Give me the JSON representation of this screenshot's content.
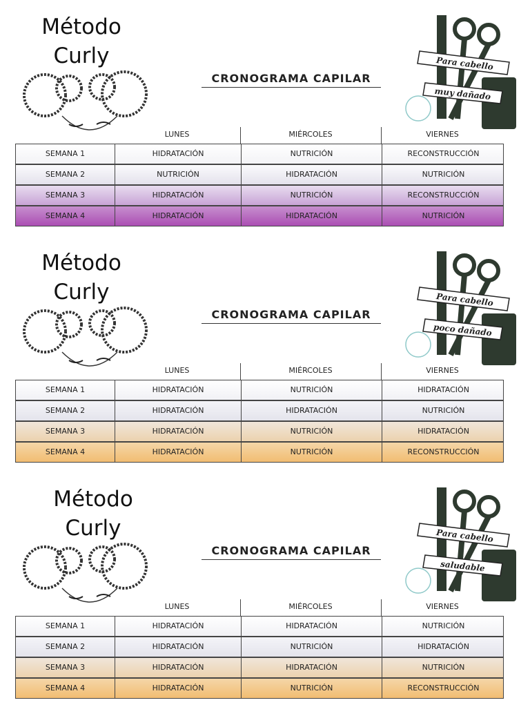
{
  "sections": [
    {
      "title": [
        "Método",
        "Curly"
      ],
      "heading": "CRONOGRAMA   CAPILAR",
      "badge": [
        "Para cabello",
        "muy dañado"
      ],
      "columns": [
        "LUNES",
        "MIÉRCOLES",
        "VIERNES"
      ],
      "rows": [
        {
          "label": "SEMANA 1",
          "cells": [
            "HIDRATACIÓN",
            "NUTRICIÓN",
            "RECONSTRUCCIÓN"
          ]
        },
        {
          "label": "SEMANA 2",
          "cells": [
            "NUTRICIÓN",
            "HIDRATACIÓN",
            "NUTRICIÓN"
          ]
        },
        {
          "label": "SEMANA 3",
          "cells": [
            "HIDRATACIÓN",
            "NUTRICIÓN",
            "RECONSTRUCCIÓN"
          ]
        },
        {
          "label": "SEMANA 4",
          "cells": [
            "HIDRATACIÓN",
            "HIDRATACIÓN",
            "NUTRICIÓN"
          ]
        }
      ]
    },
    {
      "title": [
        "Método",
        "Curly"
      ],
      "heading": "CRONOGRAMA   CAPILAR",
      "badge": [
        "Para cabello",
        "poco dañado"
      ],
      "columns": [
        "LUNES",
        "MIÉRCOLES",
        "VIERNES"
      ],
      "rows": [
        {
          "label": "SEMANA 1",
          "cells": [
            "HIDRATACIÓN",
            "NUTRICIÓN",
            "HIDRATACIÓN"
          ]
        },
        {
          "label": "SEMANA 2",
          "cells": [
            "HIDRATACIÓN",
            "HIDRATACIÓN",
            "NUTRICIÓN"
          ]
        },
        {
          "label": "SEMANA 3",
          "cells": [
            "HIDRATACIÓN",
            "NUTRICIÓN",
            "HIDRATACIÓN"
          ]
        },
        {
          "label": "SEMANA 4",
          "cells": [
            "HIDRATACIÓN",
            "NUTRICIÓN",
            "RECONSTRUCCIÓN"
          ]
        }
      ]
    },
    {
      "title": [
        "Método",
        "Curly"
      ],
      "heading": "CRONOGRAMA   CAPILAR",
      "badge": [
        "Para cabello",
        "saludable"
      ],
      "columns": [
        "LUNES",
        "MIÉRCOLES",
        "VIERNES"
      ],
      "rows": [
        {
          "label": "SEMANA 1",
          "cells": [
            "HIDRATACIÓN",
            "HIDRATACIÓN",
            "NUTRICIÓN"
          ]
        },
        {
          "label": "SEMANA 2",
          "cells": [
            "HIDRATACIÓN",
            "NUTRICIÓN",
            "HIDRATACIÓN"
          ]
        },
        {
          "label": "SEMANA 3",
          "cells": [
            "HIDRATACIÓN",
            "HIDRATACIÓN",
            "NUTRICIÓN"
          ]
        },
        {
          "label": "SEMANA 4",
          "cells": [
            "HIDRATACIÓN",
            "NUTRICIÓN",
            "RECONSTRUCCIÓN"
          ]
        }
      ]
    }
  ]
}
